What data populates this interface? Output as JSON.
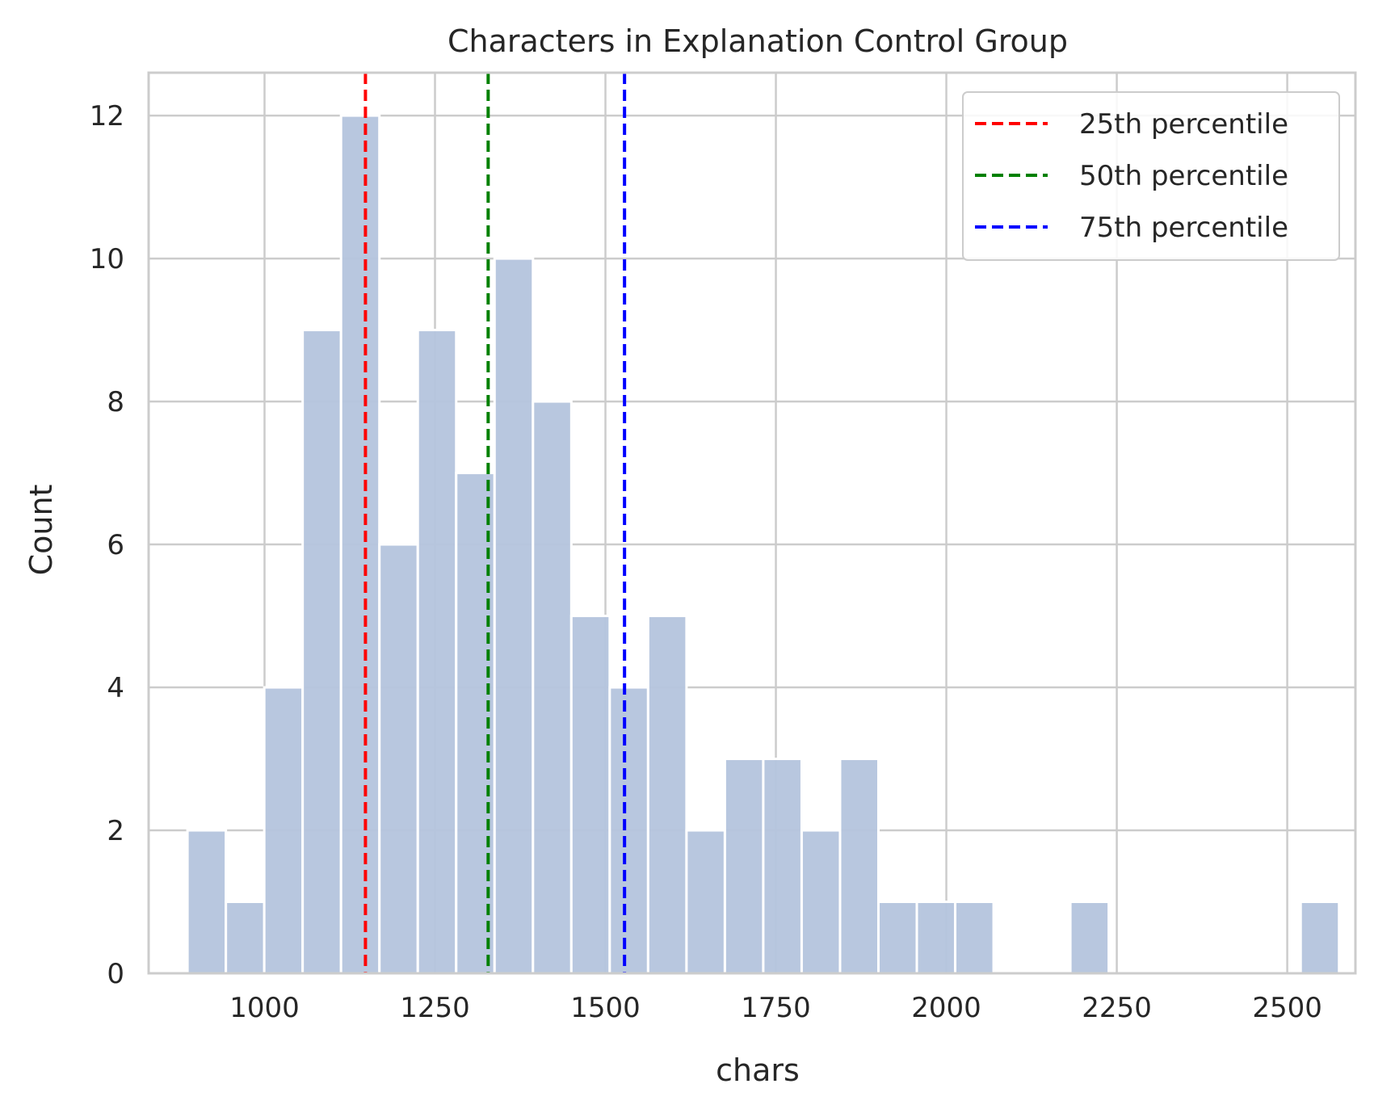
{
  "chart_data": {
    "type": "bar",
    "title": "Characters in Explanation Control Group",
    "xlabel": "chars",
    "ylabel": "Count",
    "xlim": [
      830,
      2600
    ],
    "ylim": [
      0,
      12.6
    ],
    "xticks": [
      1000,
      1250,
      1500,
      1750,
      2000,
      2250,
      2500
    ],
    "xtick_labels": [
      "1000",
      "1250",
      "1500",
      "1750",
      "2000",
      "2250",
      "2500"
    ],
    "yticks": [
      0,
      2,
      4,
      6,
      8,
      10,
      12
    ],
    "ytick_labels": [
      "0",
      "2",
      "4",
      "6",
      "8",
      "10",
      "12"
    ],
    "grid": true,
    "bins": {
      "start": 887,
      "width": 56.3,
      "counts": [
        2,
        1,
        4,
        9,
        12,
        6,
        9,
        7,
        10,
        8,
        5,
        4,
        5,
        2,
        3,
        3,
        2,
        3,
        1,
        1,
        1,
        0,
        0,
        1,
        0,
        0,
        0,
        0,
        0,
        1
      ]
    },
    "bar_color": "#b4c4dd",
    "percentiles": [
      {
        "name": "25th percentile",
        "value": 1148,
        "color": "#ff0000"
      },
      {
        "name": "50th percentile",
        "value": 1328,
        "color": "#008000"
      },
      {
        "name": "75th percentile",
        "value": 1528,
        "color": "#0000ff"
      }
    ],
    "legend_position": "top-right"
  }
}
